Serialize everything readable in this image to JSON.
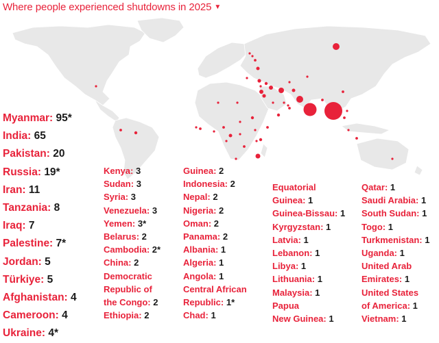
{
  "title": "Where people experienced shutdowns in 2025",
  "title_caret_icon": "caret-down-icon",
  "colors": {
    "accent": "#e8223a",
    "land": "#e8e8e8",
    "text": "#1a1a1a"
  },
  "map_dots": [
    {
      "country": "Myanmar",
      "count": 95
    },
    {
      "country": "India",
      "count": 65
    },
    {
      "country": "Pakistan",
      "count": 20
    },
    {
      "country": "Russia",
      "count": 19
    },
    {
      "country": "Iran",
      "count": 11
    },
    {
      "country": "Tanzania",
      "count": 8
    },
    {
      "country": "Iraq",
      "count": 7
    },
    {
      "country": "Palestine",
      "count": 7
    },
    {
      "country": "Jordan",
      "count": 5
    },
    {
      "country": "Türkiye",
      "count": 5
    },
    {
      "country": "Afghanistan",
      "count": 4
    },
    {
      "country": "Cameroon",
      "count": 4
    },
    {
      "country": "Ukraine",
      "count": 4
    }
  ],
  "columns": [
    [
      {
        "label": "Myanmar:",
        "value": "95*"
      },
      {
        "label": "India:",
        "value": "65"
      },
      {
        "label": "Pakistan:",
        "value": "20"
      },
      {
        "label": "Russia:",
        "value": "19*"
      },
      {
        "label": "Iran:",
        "value": "11"
      },
      {
        "label": "Tanzania:",
        "value": "8"
      },
      {
        "label": "Iraq:",
        "value": "7"
      },
      {
        "label": "Palestine:",
        "value": "7*"
      },
      {
        "label": "Jordan:",
        "value": "5"
      },
      {
        "label": "Türkiye:",
        "value": "5"
      },
      {
        "label": "Afghanistan:",
        "value": "4"
      },
      {
        "label": "Cameroon:",
        "value": "4"
      },
      {
        "label": "Ukraine:",
        "value": "4*"
      }
    ],
    [
      {
        "label": "Kenya:",
        "value": "3"
      },
      {
        "label": "Sudan:",
        "value": "3"
      },
      {
        "label": "Syria:",
        "value": "3"
      },
      {
        "label": "Venezuela:",
        "value": "3"
      },
      {
        "label": "Yemen:",
        "value": "3*"
      },
      {
        "label": "Belarus:",
        "value": "2"
      },
      {
        "label": "Cambodia:",
        "value": "2*"
      },
      {
        "label": "China:",
        "value": "2"
      },
      {
        "label": "Democratic",
        "value": ""
      },
      {
        "label": "Republic of",
        "value": ""
      },
      {
        "label": "the Congo:",
        "value": "2"
      },
      {
        "label": "Ethiopia:",
        "value": "2"
      }
    ],
    [
      {
        "label": "Guinea:",
        "value": "2"
      },
      {
        "label": "Indonesia:",
        "value": "2"
      },
      {
        "label": "Nepal:",
        "value": "2"
      },
      {
        "label": "Nigeria:",
        "value": "2"
      },
      {
        "label": "Oman:",
        "value": "2"
      },
      {
        "label": "Panama:",
        "value": "2"
      },
      {
        "label": "Albania:",
        "value": "1"
      },
      {
        "label": "Algeria:",
        "value": "1"
      },
      {
        "label": "Angola:",
        "value": "1"
      },
      {
        "label": "Central African",
        "value": ""
      },
      {
        "label": "Republic:",
        "value": "1*"
      },
      {
        "label": "Chad:",
        "value": "1"
      }
    ],
    [
      {
        "label": "Equatorial",
        "value": ""
      },
      {
        "label": "Guinea:",
        "value": "1"
      },
      {
        "label": "Guinea-Bissau:",
        "value": "1"
      },
      {
        "label": "Kyrgyzstan:",
        "value": "1"
      },
      {
        "label": "Latvia:",
        "value": "1"
      },
      {
        "label": "Lebanon:",
        "value": "1"
      },
      {
        "label": "Libya:",
        "value": "1"
      },
      {
        "label": "Lithuania:",
        "value": "1"
      },
      {
        "label": "Malaysia:",
        "value": "1"
      },
      {
        "label": "Papua",
        "value": ""
      },
      {
        "label": "New Guinea:",
        "value": "1"
      }
    ],
    [
      {
        "label": "Qatar:",
        "value": "1"
      },
      {
        "label": "Saudi Arabia:",
        "value": "1"
      },
      {
        "label": "South Sudan:",
        "value": "1"
      },
      {
        "label": "Togo:",
        "value": "1"
      },
      {
        "label": "Turkmenistan:",
        "value": "1"
      },
      {
        "label": "Uganda:",
        "value": "1"
      },
      {
        "label": "United Arab",
        "value": ""
      },
      {
        "label": "Emirates:",
        "value": "1"
      },
      {
        "label": "United States",
        "value": ""
      },
      {
        "label": "of America:",
        "value": "1"
      },
      {
        "label": "Vietnam:",
        "value": "1"
      }
    ]
  ]
}
